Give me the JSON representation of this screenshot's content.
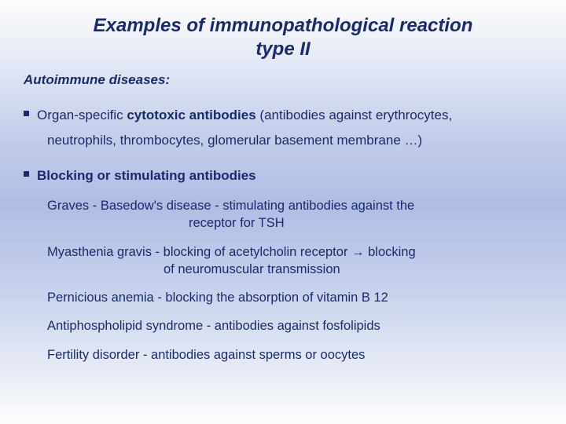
{
  "colors": {
    "text": "#1a2a6c",
    "gradient_top": "#fdfdfe",
    "gradient_mid": "#b0bde4",
    "gradient_bottom": "#fdfdfe",
    "bullet": "#1a2a6c"
  },
  "typography": {
    "family": "Verdana, Geneva, sans-serif",
    "title_size_pt": 18,
    "subheading_size_pt": 13,
    "body_size_pt": 13,
    "title_weight": "bold",
    "title_style": "italic"
  },
  "title_line1": "Examples of immunopathological reaction",
  "title_line2": "type II",
  "subheading": "Autoimmune diseases:",
  "point1_pre": "Organ-specific ",
  "point1_bold": "cytotoxic antibodies",
  "point1_post": " (antibodies against erythrocytes,",
  "point1_cont": "neutrophils, thrombocytes, glomerular basement membrane …)",
  "point2": "Blocking or stimulating antibodies",
  "ex1_a": "Graves - Basedow's disease - stimulating antibodies against the",
  "ex1_b": "receptor for TSH",
  "ex2_a": "Myasthenia gravis - blocking  of acetylcholin receptor → blocking",
  "ex2_b": "of neuromuscular transmission",
  "ex3": "Pernicious anemia - blocking the absorption of vitamin B 12",
  "ex4": "Antiphospholipid syndrome - antibodies against fosfolipids",
  "ex5": "Fertility disorder - antibodies against sperms or oocytes"
}
